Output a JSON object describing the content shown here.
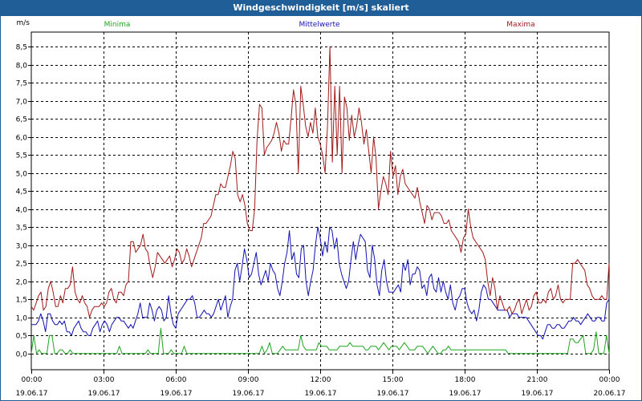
{
  "window": {
    "title": "Windgeschwindigkeit [m/s] skaliert"
  },
  "chart_data": {
    "type": "line",
    "title": "Windgeschwindigkeit [m/s] skaliert",
    "ylabel": "m/s",
    "ylim": [
      -0.45,
      8.9
    ],
    "yticks": [
      "0,0",
      "0,5",
      "1,0",
      "1,5",
      "2,0",
      "2,5",
      "3,0",
      "3,5",
      "4,0",
      "4,5",
      "5,0",
      "5,5",
      "6,0",
      "6,5",
      "7,0",
      "7,5",
      "8,0",
      "8,5"
    ],
    "x_start_hours": 0,
    "x_end_hours": 24,
    "xticks": [
      {
        "time": "00:00",
        "date": "19.06.17"
      },
      {
        "time": "03:00",
        "date": "19.06.17"
      },
      {
        "time": "06:00",
        "date": "19.06.17"
      },
      {
        "time": "09:00",
        "date": "19.06.17"
      },
      {
        "time": "12:00",
        "date": "19.06.17"
      },
      {
        "time": "15:00",
        "date": "19.06.17"
      },
      {
        "time": "18:00",
        "date": "19.06.17"
      },
      {
        "time": "21:00",
        "date": "19.06.17"
      },
      {
        "time": "00:00",
        "date": "20.06.17"
      }
    ],
    "grid": true,
    "legend_position": "top",
    "series": [
      {
        "name": "Minima",
        "color": "#1fa51f",
        "values": [
          0.0,
          0.5,
          0.0,
          0.1,
          0.0,
          0.0,
          0.0,
          0.5,
          0.5,
          0.0,
          0.0,
          0.1,
          0.1,
          0.0,
          0.0,
          0.1,
          0.0,
          0.0,
          0.0,
          0.0,
          0.0,
          0.0,
          0.0,
          0.0,
          0.0,
          0.0,
          0.0,
          0.0,
          0.0,
          0.0,
          0.0,
          0.0,
          0.0,
          0.0,
          0.2,
          0.0,
          0.0,
          0.0,
          0.0,
          0.0,
          0.0,
          0.0,
          0.0,
          0.0,
          0.0,
          0.1,
          0.0,
          0.0,
          0.0,
          0.0,
          0.7,
          0.0,
          0.0,
          0.0,
          0.1,
          0.0,
          0.0,
          0.0,
          0.0,
          0.2,
          0.0,
          0.0,
          0.0,
          0.0,
          0.0,
          0.0,
          0.0,
          0.0,
          0.0,
          0.0,
          0.0,
          0.0,
          0.0,
          0.0,
          0.0,
          0.0,
          0.0,
          0.0,
          0.0,
          0.0,
          0.0,
          0.0,
          0.0,
          0.0,
          0.0,
          0.0,
          0.0,
          0.0,
          0.0,
          0.2,
          0.0,
          0.1,
          0.3,
          0.0,
          0.0,
          0.0,
          0.1,
          0.2,
          0.1,
          0.1,
          0.1,
          0.1,
          0.1,
          0.1,
          0.5,
          0.2,
          0.1,
          0.1,
          0.1,
          0.1,
          0.1,
          0.3,
          0.2,
          0.2,
          0.2,
          0.1,
          0.1,
          0.1,
          0.1,
          0.2,
          0.2,
          0.2,
          0.2,
          0.3,
          0.2,
          0.2,
          0.2,
          0.2,
          0.2,
          0.1,
          0.1,
          0.2,
          0.2,
          0.2,
          0.1,
          0.2,
          0.3,
          0.2,
          0.1,
          0.2,
          0.2,
          0.2,
          0.1,
          0.2,
          0.3,
          0.2,
          0.1,
          0.1,
          0.1,
          0.2,
          0.2,
          0.2,
          0.1,
          0.0,
          0.1,
          0.2,
          0.1,
          0.0,
          0.0,
          0.1,
          0.1,
          0.2,
          0.1,
          0.1,
          0.1,
          0.1,
          0.1,
          0.1,
          0.1,
          0.1,
          0.1,
          0.1,
          0.1,
          0.1,
          0.1,
          0.1,
          0.1,
          0.1,
          0.1,
          0.1,
          0.1,
          0.1,
          0.1,
          0.1,
          0.0,
          0.0,
          0.0,
          0.0,
          0.0,
          0.0,
          0.0,
          0.0,
          0.0,
          0.0,
          0.0,
          0.0,
          0.0,
          0.0,
          0.0,
          0.0,
          0.0,
          0.0,
          0.0,
          0.0,
          0.0,
          0.0,
          0.0,
          0.0,
          0.4,
          0.4,
          0.3,
          0.3,
          0.4,
          0.5,
          0.0,
          0.0,
          0.0,
          0.1,
          0.6,
          0.0,
          0.0,
          0.0,
          0.5,
          0.0
        ]
      },
      {
        "name": "Mittelwerte",
        "color": "#1212b4",
        "values": [
          0.8,
          0.8,
          0.8,
          0.9,
          1.1,
          0.9,
          0.6,
          1.1,
          1.1,
          0.9,
          0.8,
          0.8,
          0.9,
          0.8,
          0.9,
          0.6,
          0.6,
          0.5,
          0.7,
          0.8,
          0.9,
          0.7,
          0.6,
          0.6,
          0.5,
          0.5,
          0.7,
          0.8,
          0.9,
          0.6,
          0.8,
          0.9,
          0.8,
          0.6,
          0.8,
          0.9,
          1.0,
          1.0,
          0.9,
          0.9,
          0.8,
          0.7,
          0.8,
          0.7,
          0.9,
          1.1,
          1.4,
          1.0,
          1.0,
          1.0,
          1.4,
          1.2,
          0.9,
          1.2,
          1.3,
          1.2,
          0.9,
          1.0,
          1.6,
          1.1,
          0.8,
          0.7,
          1.1,
          1.2,
          1.3,
          1.4,
          1.5,
          1.5,
          1.6,
          1.4,
          1.0,
          1.0,
          1.1,
          1.2,
          1.1,
          1.1,
          1.0,
          1.1,
          1.3,
          1.5,
          1.2,
          1.4,
          1.6,
          1.0,
          1.3,
          1.5,
          2.3,
          2.5,
          2.0,
          2.4,
          2.9,
          2.6,
          2.1,
          2.2,
          2.5,
          2.8,
          2.2,
          1.9,
          2.1,
          2.3,
          2.0,
          2.5,
          2.3,
          2.2,
          1.8,
          1.6,
          2.0,
          2.5,
          2.8,
          3.4,
          2.6,
          2.8,
          2.2,
          2.1,
          2.9,
          3.0,
          2.0,
          1.6,
          2.0,
          2.3,
          3.0,
          3.5,
          3.2,
          2.7,
          3.1,
          2.8,
          3.5,
          3.4,
          2.9,
          3.2,
          2.5,
          2.2,
          2.0,
          1.8,
          2.0,
          2.6,
          3.1,
          2.6,
          3.0,
          3.3,
          3.2,
          3.1,
          2.3,
          2.1,
          3.0,
          2.6,
          1.9,
          1.6,
          2.3,
          2.6,
          2.0,
          1.7,
          1.7,
          1.7,
          1.8,
          1.9,
          1.7,
          2.5,
          2.3,
          2.6,
          1.9,
          2.2,
          2.2,
          2.4,
          2.3,
          1.8,
          1.9,
          1.6,
          2.1,
          2.2,
          1.8,
          1.7,
          2.1,
          1.7,
          2.0,
          1.7,
          1.5,
          1.9,
          1.4,
          1.2,
          1.5,
          1.6,
          1.8,
          1.8,
          1.4,
          1.2,
          1.1,
          1.2,
          0.9,
          1.2,
          1.7,
          1.9,
          1.8,
          1.5,
          1.5,
          1.4,
          1.3,
          1.2,
          1.2,
          1.2,
          1.2,
          1.2,
          1.0,
          1.1,
          1.1,
          1.1,
          1.0,
          1.0,
          1.0,
          1.0,
          0.9,
          0.8,
          0.7,
          0.6,
          0.5,
          0.5,
          0.4,
          0.6,
          0.8,
          0.8,
          0.7,
          0.7,
          0.8,
          0.8,
          0.7,
          0.7,
          0.8,
          0.9,
          0.9,
          1.0,
          0.9,
          0.9,
          0.8,
          0.9,
          1.0,
          1.1,
          1.0,
          0.9,
          0.9,
          1.0,
          1.0,
          0.9,
          0.9,
          1.4,
          1.5
        ]
      },
      {
        "name": "Maxima",
        "color": "#a21a1a",
        "values": [
          1.3,
          1.2,
          1.4,
          1.6,
          1.7,
          1.2,
          1.3,
          1.8,
          2.0,
          1.7,
          1.3,
          1.3,
          1.6,
          1.4,
          1.8,
          1.8,
          1.9,
          2.4,
          1.7,
          1.5,
          1.4,
          1.6,
          1.4,
          1.3,
          1.0,
          1.2,
          1.3,
          1.3,
          1.3,
          1.4,
          1.3,
          1.4,
          1.7,
          1.8,
          1.5,
          1.4,
          1.7,
          1.7,
          1.6,
          1.9,
          2.0,
          3.1,
          3.1,
          2.8,
          2.9,
          3.0,
          3.3,
          2.9,
          2.8,
          2.4,
          2.1,
          2.4,
          2.8,
          2.7,
          2.6,
          2.5,
          2.6,
          2.7,
          2.4,
          2.6,
          2.9,
          2.8,
          2.5,
          2.6,
          2.9,
          2.7,
          2.4,
          2.6,
          2.8,
          3.0,
          3.2,
          3.6,
          3.6,
          3.7,
          3.8,
          4.1,
          4.4,
          4.4,
          4.7,
          4.6,
          4.6,
          4.9,
          5.2,
          5.6,
          5.4,
          4.4,
          4.2,
          4.4,
          4.1,
          3.6,
          3.4,
          3.4,
          4.0,
          5.9,
          6.9,
          6.8,
          5.5,
          5.7,
          5.8,
          5.9,
          6.1,
          6.4,
          6.1,
          5.6,
          5.9,
          5.8,
          5.8,
          6.5,
          7.3,
          6.9,
          5.0,
          7.4,
          6.9,
          6.3,
          6.0,
          6.4,
          6.1,
          6.8,
          6.0,
          5.8,
          5.5,
          5.0,
          6.3,
          8.5,
          5.3,
          7.4,
          5.5,
          7.4,
          5.0,
          7.1,
          6.8,
          5.9,
          6.6,
          6.0,
          6.3,
          6.8,
          6.4,
          5.8,
          6.2,
          5.6,
          5.0,
          6.0,
          5.4,
          4.0,
          4.5,
          4.9,
          4.7,
          4.4,
          5.6,
          4.9,
          5.2,
          4.4,
          4.9,
          5.1,
          4.7,
          4.6,
          4.5,
          4.4,
          4.3,
          4.6,
          4.2,
          3.9,
          3.6,
          4.1,
          4.0,
          3.7,
          3.9,
          3.9,
          3.9,
          3.8,
          3.6,
          3.6,
          3.7,
          3.4,
          3.3,
          3.2,
          3.1,
          2.8,
          3.2,
          3.3,
          4.0,
          3.5,
          3.2,
          3.1,
          3.0,
          2.9,
          2.8,
          2.6,
          2.0,
          1.6,
          2.1,
          1.8,
          1.2,
          1.6,
          1.4,
          1.2,
          1.2,
          1.3,
          1.1,
          1.2,
          1.4,
          1.5,
          1.1,
          1.3,
          1.5,
          1.2,
          1.3,
          1.6,
          1.7,
          1.4,
          1.4,
          1.5,
          1.4,
          1.7,
          1.8,
          1.5,
          1.6,
          1.9,
          1.5,
          1.4,
          1.5,
          1.5,
          1.5,
          2.5,
          2.5,
          2.6,
          2.5,
          2.4,
          2.3,
          1.9,
          1.8,
          1.6,
          1.5,
          1.5,
          1.5,
          1.6,
          1.5,
          1.5,
          2.5
        ]
      }
    ]
  }
}
